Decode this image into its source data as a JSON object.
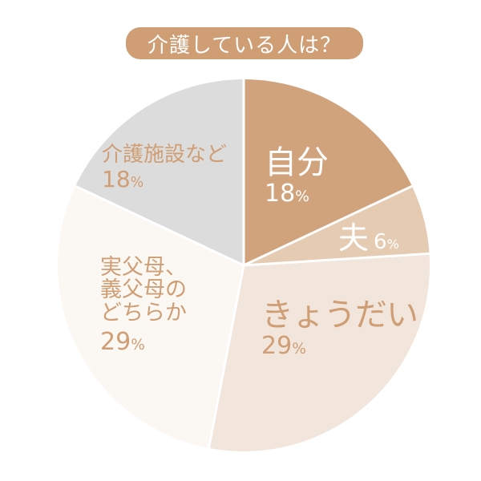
{
  "title": "介護している人は？",
  "colors": {
    "title_bg": "#cf9e74",
    "label_dark": "#cf9e74",
    "label_light": "#ffffff",
    "separator": "#ffffff"
  },
  "chart_data": {
    "type": "pie",
    "title": "介護している人は？",
    "start_angle_deg": 0,
    "direction": "clockwise",
    "categories": [
      "自分",
      "夫",
      "きょうだい",
      "実父母、義父母のどちらか",
      "介護施設など"
    ],
    "values": [
      18,
      6,
      29,
      29,
      18
    ],
    "unit": "%",
    "slice_colors": [
      "#d1a37c",
      "#e6cbb3",
      "#f1e5dc",
      "#fbf8f4",
      "#dddcdc"
    ],
    "legend": "none (labels inside slices)"
  },
  "slices": [
    {
      "name": "自分",
      "pct_num": "18",
      "pct_unit": "%"
    },
    {
      "name": "夫",
      "pct_num": "6",
      "pct_unit": "%"
    },
    {
      "name": "きょうだい",
      "pct_num": "29",
      "pct_unit": "%"
    },
    {
      "name_lines": [
        "実父母、",
        "義父母の",
        "どちらか"
      ],
      "pct_num": "29",
      "pct_unit": "%"
    },
    {
      "name": "介護施設など",
      "pct_num": "18",
      "pct_unit": "%"
    }
  ]
}
